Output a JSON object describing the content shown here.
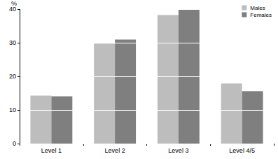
{
  "chart_data": {
    "type": "bar",
    "categories": [
      "Level 1",
      "Level 2",
      "Level 3",
      "Level 4/5"
    ],
    "series": [
      {
        "name": "Males",
        "color": "#bdbdbd",
        "values": [
          14.3,
          29.8,
          38.3,
          17.9
        ]
      },
      {
        "name": "Females",
        "color": "#7f7f7f",
        "values": [
          14.1,
          31.0,
          39.9,
          15.6
        ]
      }
    ],
    "y_label": "%",
    "ylim": [
      0,
      40
    ],
    "yticks": [
      0,
      10,
      20,
      30,
      40
    ],
    "grid": true,
    "legend": "upper right"
  }
}
